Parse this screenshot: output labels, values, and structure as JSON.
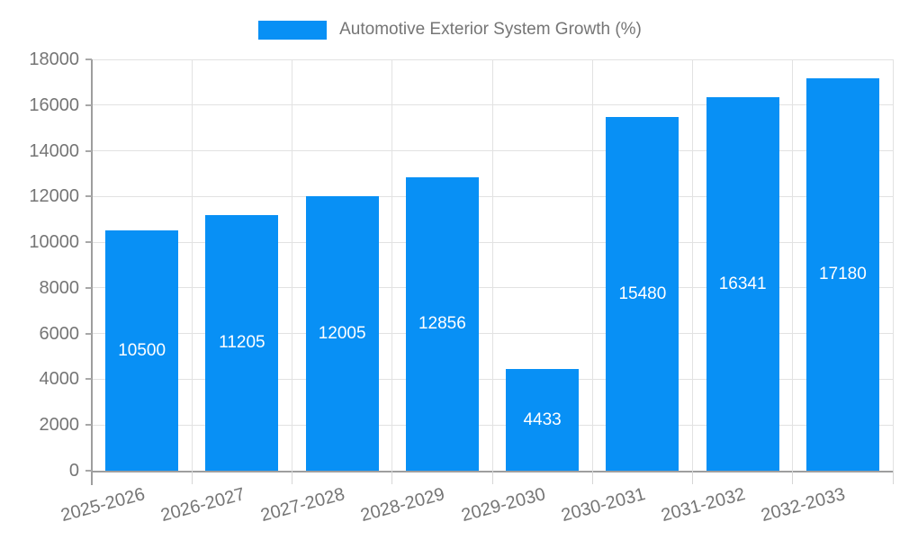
{
  "legend": {
    "label": "Automotive Exterior System Growth (%)"
  },
  "chart_data": {
    "type": "bar",
    "title": "Automotive Exterior System Growth (%)",
    "categories": [
      "2025-2026",
      "2026-2027",
      "2027-2028",
      "2028-2029",
      "2029-2030",
      "2030-2031",
      "2031-2032",
      "2032-2033"
    ],
    "values": [
      10500,
      11205,
      12005,
      12856,
      4433,
      15480,
      16341,
      17180
    ],
    "series_name": "Automotive Exterior System Growth (%)",
    "xlabel": "",
    "ylabel": "",
    "ylim": [
      0,
      18000
    ],
    "ytick_step": 2000,
    "ytick_labels": [
      "0",
      "2000",
      "4000",
      "6000",
      "8000",
      "10000",
      "12000",
      "14000",
      "16000",
      "18000"
    ],
    "grid": true,
    "legend_position": "top-center",
    "value_labels": "inside-center",
    "colors": {
      "bar": "#0890f5",
      "value_label": "#ffffff",
      "axis_text": "#757575",
      "grid_line": "#e2e2e2",
      "axis_line": "#9e9e9e"
    }
  }
}
